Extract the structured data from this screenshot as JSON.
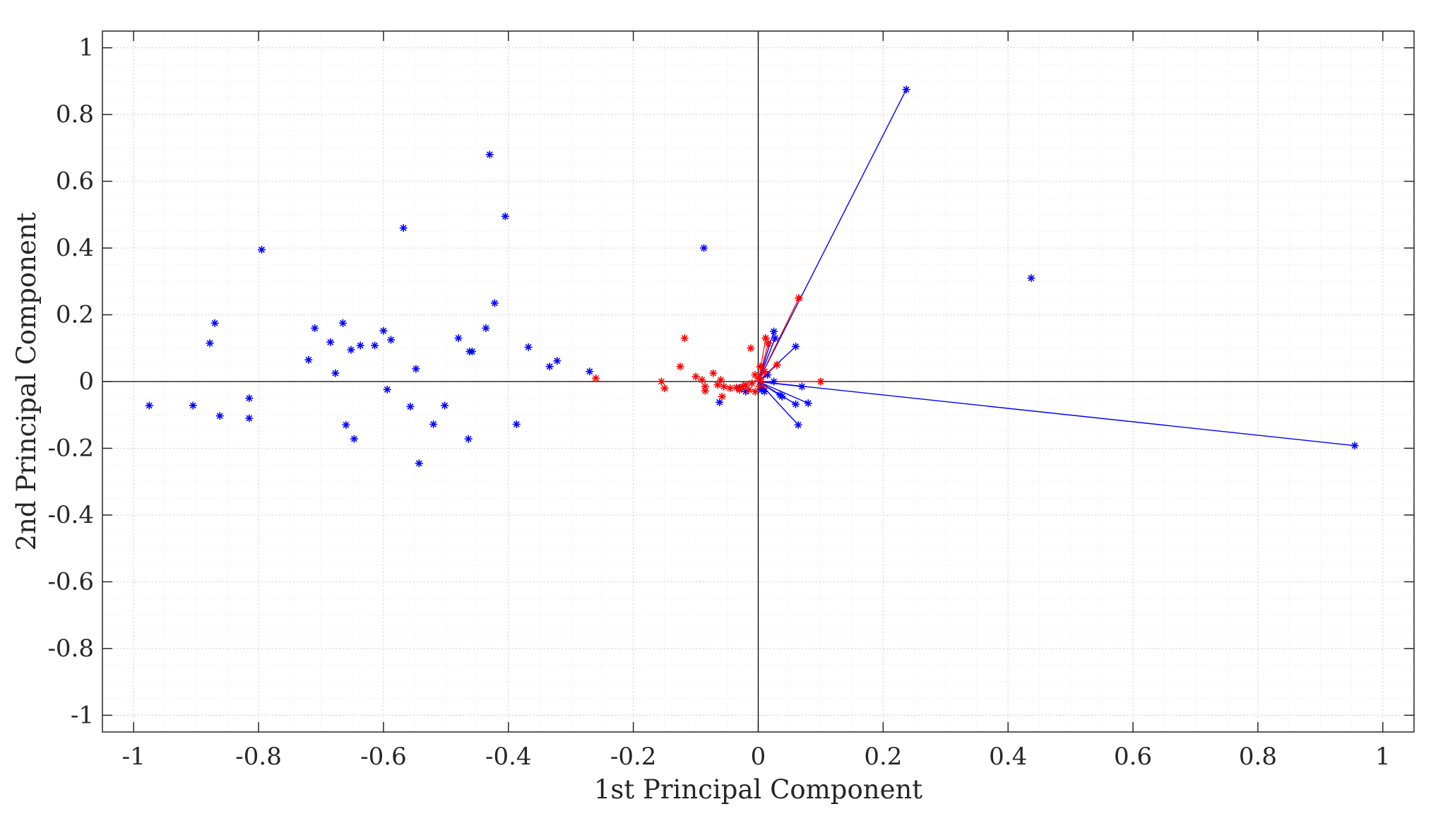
{
  "chart_data": {
    "type": "scatter",
    "title": "",
    "xlabel": "1st Principal Component",
    "ylabel": "2nd Principal Component",
    "xlim": [
      -1.05,
      1.05
    ],
    "ylim": [
      -1.05,
      1.05
    ],
    "xticks": [
      -1,
      -0.8,
      -0.6,
      -0.4,
      -0.2,
      0,
      0.2,
      0.4,
      0.6,
      0.8,
      1
    ],
    "yticks": [
      1,
      0.8,
      0.6,
      0.4,
      0.2,
      0,
      -0.2,
      -0.4,
      -0.6,
      -0.8,
      -1
    ],
    "grid": true,
    "minor_grid": true,
    "marker": "*",
    "colors": {
      "scores": "#0000ff",
      "vector_points": "#ff0000",
      "vector_lines": "#0000ff",
      "axes": "#262626",
      "grid": "#dcdcdc"
    },
    "series": [
      {
        "color": "#0000ff",
        "points": [
          [
            -0.975,
            -0.072
          ],
          [
            -0.905,
            -0.072
          ],
          [
            -0.878,
            0.115
          ],
          [
            -0.87,
            0.175
          ],
          [
            -0.862,
            -0.103
          ],
          [
            -0.815,
            -0.05
          ],
          [
            -0.815,
            -0.11
          ],
          [
            -0.795,
            0.395
          ],
          [
            -0.72,
            0.065
          ],
          [
            -0.71,
            0.16
          ],
          [
            -0.685,
            0.118
          ],
          [
            -0.677,
            0.025
          ],
          [
            -0.665,
            0.175
          ],
          [
            -0.66,
            -0.13
          ],
          [
            -0.652,
            0.095
          ],
          [
            -0.647,
            -0.172
          ],
          [
            -0.637,
            0.108
          ],
          [
            -0.614,
            0.108
          ],
          [
            -0.6,
            0.152
          ],
          [
            -0.594,
            -0.024
          ],
          [
            -0.588,
            0.125
          ],
          [
            -0.568,
            0.46
          ],
          [
            -0.557,
            -0.075
          ],
          [
            -0.548,
            0.038
          ],
          [
            -0.543,
            -0.245
          ],
          [
            -0.52,
            -0.128
          ],
          [
            -0.502,
            -0.072
          ],
          [
            -0.48,
            0.13
          ],
          [
            -0.464,
            -0.172
          ],
          [
            -0.462,
            0.09
          ],
          [
            -0.458,
            0.09
          ],
          [
            -0.436,
            0.16
          ],
          [
            -0.43,
            0.68
          ],
          [
            -0.422,
            0.235
          ],
          [
            -0.405,
            0.495
          ],
          [
            -0.387,
            -0.128
          ],
          [
            -0.368,
            0.103
          ],
          [
            -0.334,
            0.045
          ],
          [
            -0.322,
            0.062
          ],
          [
            -0.27,
            0.03
          ],
          [
            -0.087,
            0.4
          ],
          [
            -0.062,
            -0.062
          ],
          [
            0.437,
            0.31
          ],
          [
            -0.03,
            -0.02
          ],
          [
            -0.02,
            -0.03
          ]
        ]
      },
      {
        "color": "#ff0000",
        "points": [
          [
            -0.26,
            0.01
          ],
          [
            -0.155,
            0.0
          ],
          [
            -0.15,
            -0.02
          ],
          [
            -0.125,
            0.045
          ],
          [
            -0.118,
            0.13
          ],
          [
            -0.1,
            0.015
          ],
          [
            -0.09,
            0.005
          ],
          [
            -0.085,
            -0.015
          ],
          [
            -0.085,
            -0.028
          ],
          [
            -0.072,
            0.025
          ],
          [
            -0.065,
            -0.01
          ],
          [
            -0.06,
            0.005
          ],
          [
            -0.058,
            -0.045
          ],
          [
            -0.055,
            -0.015
          ],
          [
            -0.045,
            -0.02
          ],
          [
            -0.035,
            -0.018
          ],
          [
            -0.03,
            -0.025
          ],
          [
            -0.025,
            -0.015
          ],
          [
            -0.02,
            -0.01
          ],
          [
            -0.015,
            -0.025
          ],
          [
            -0.012,
            0.1
          ],
          [
            -0.01,
            -0.005
          ],
          [
            -0.005,
            0.02
          ],
          [
            0.0,
            0.01
          ],
          [
            0.005,
            0.0
          ],
          [
            0.008,
            -0.02
          ],
          [
            0.003,
            0.045
          ],
          [
            0.01,
            0.03
          ],
          [
            0.012,
            0.13
          ],
          [
            0.016,
            0.115
          ],
          [
            0.03,
            0.05
          ],
          [
            0.065,
            0.25
          ],
          [
            0.1,
            0.0
          ],
          [
            -0.005,
            -0.03
          ],
          [
            0.002,
            -0.015
          ]
        ]
      }
    ],
    "vectors": [
      [
        0.237,
        0.875
      ],
      [
        0.955,
        -0.192
      ],
      [
        0.025,
        0.15
      ],
      [
        0.027,
        0.13
      ],
      [
        0.06,
        0.105
      ],
      [
        0.025,
        0.0
      ],
      [
        0.07,
        -0.015
      ],
      [
        0.08,
        -0.065
      ],
      [
        0.06,
        -0.068
      ],
      [
        0.064,
        -0.13
      ],
      [
        0.038,
        -0.045
      ],
      [
        0.035,
        -0.04
      ],
      [
        0.01,
        -0.03
      ],
      [
        0.015,
        0.02
      ],
      [
        0.005,
        -0.025
      ]
    ],
    "vector_red_points": [
      [
        0.065,
        0.25
      ],
      [
        0.012,
        0.13
      ],
      [
        0.016,
        0.115
      ],
      [
        0.03,
        0.05
      ],
      [
        0.1,
        0.0
      ],
      [
        0.01,
        0.03
      ]
    ]
  }
}
